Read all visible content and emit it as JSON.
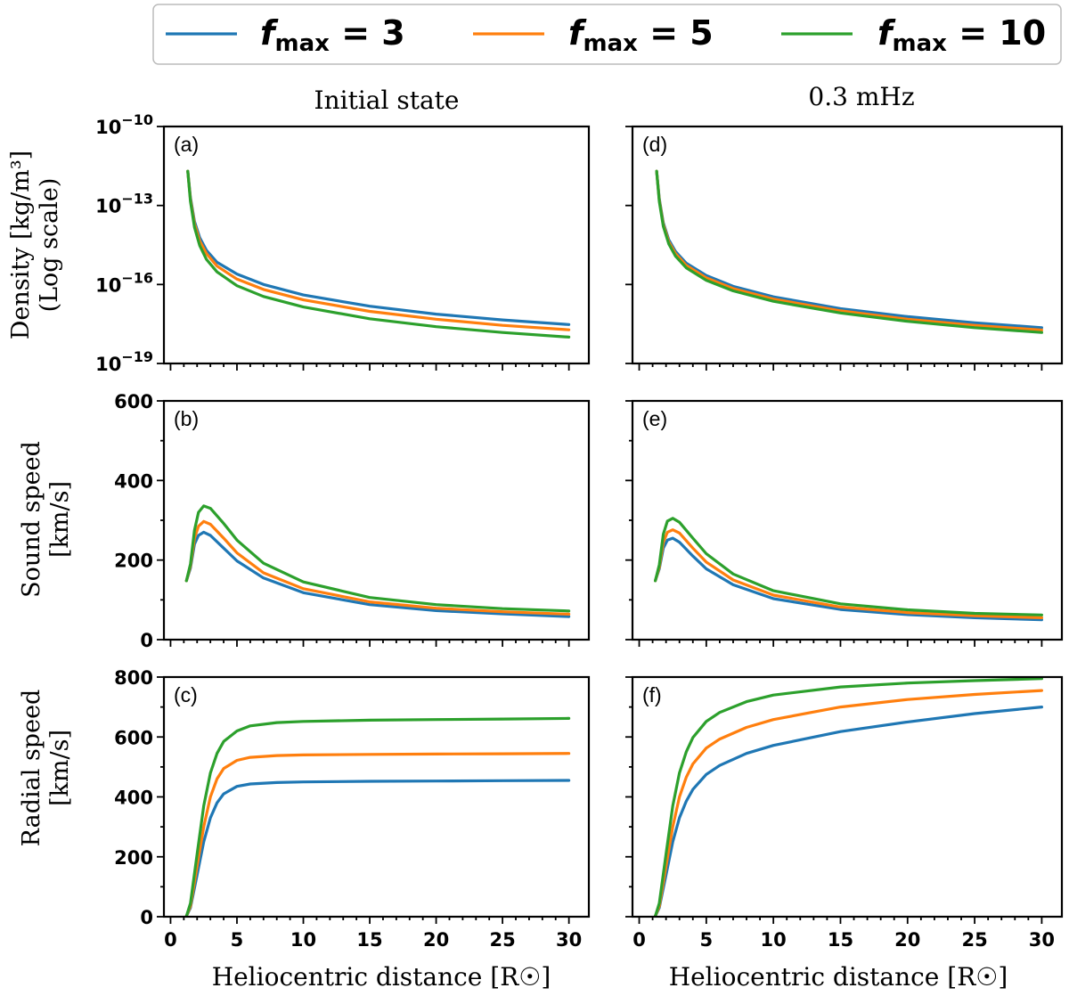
{
  "legend": {
    "entries": [
      {
        "label": "f",
        "sub": "max",
        "suffix": " = 3",
        "color": "#1f77b4"
      },
      {
        "label": "f",
        "sub": "max",
        "suffix": " = 5",
        "color": "#ff7f0e"
      },
      {
        "label": "f",
        "sub": "max",
        "suffix": " = 10",
        "color": "#2ca02c"
      }
    ]
  },
  "columns": [
    {
      "title": "Initial state"
    },
    {
      "title": "0.3 mHz"
    }
  ],
  "row_labels": [
    {
      "lines": [
        "Density [kg/m³]",
        "(Log scale)"
      ]
    },
    {
      "lines": [
        "Sound speed",
        "[km/s]"
      ]
    },
    {
      "lines": [
        "Radial speed",
        "[km/s]"
      ]
    }
  ],
  "xlabel": "Heliocentric distance [R☉]",
  "chart_data": [
    {
      "id": "a",
      "panel_label": "(a)",
      "type": "line",
      "yscale": "log",
      "xlim": [
        -0.5,
        31.5
      ],
      "ylim": [
        1e-19,
        1e-10
      ],
      "xticks": [
        0,
        5,
        10,
        15,
        20,
        25,
        30
      ],
      "yticks": [
        {
          "v": 1e-10,
          "b": "10",
          "e": "−10"
        },
        {
          "v": 1e-13,
          "b": "10",
          "e": "−13"
        },
        {
          "v": 1e-16,
          "b": "10",
          "e": "−16"
        },
        {
          "v": 1e-19,
          "b": "10",
          "e": "−19"
        }
      ],
      "series": [
        {
          "name": "fmax = 3",
          "color": "#1f77b4",
          "x": [
            1.3,
            1.5,
            1.8,
            2.2,
            2.7,
            3.5,
            5,
            7,
            10,
            15,
            20,
            25,
            30
          ],
          "y": [
            2e-12,
            2e-13,
            2.5e-14,
            6e-15,
            2e-15,
            7e-16,
            2.5e-16,
            1e-16,
            4e-17,
            1.5e-17,
            7.5e-18,
            4.5e-18,
            3e-18
          ]
        },
        {
          "name": "fmax = 5",
          "color": "#ff7f0e",
          "x": [
            1.3,
            1.5,
            1.8,
            2.2,
            2.7,
            3.5,
            5,
            7,
            10,
            15,
            20,
            25,
            30
          ],
          "y": [
            2e-12,
            1.7e-13,
            2e-14,
            4.5e-15,
            1.5e-15,
            5e-16,
            1.6e-16,
            6.5e-17,
            2.6e-17,
            9.5e-18,
            4.8e-18,
            2.8e-18,
            1.9e-18
          ]
        },
        {
          "name": "fmax = 10",
          "color": "#2ca02c",
          "x": [
            1.3,
            1.5,
            1.8,
            2.2,
            2.7,
            3.5,
            5,
            7,
            10,
            15,
            20,
            25,
            30
          ],
          "y": [
            2e-12,
            1.4e-13,
            1.5e-14,
            3e-15,
            9e-16,
            3e-16,
            9e-17,
            3.5e-17,
            1.4e-17,
            5e-18,
            2.5e-18,
            1.5e-18,
            1e-18
          ]
        }
      ]
    },
    {
      "id": "d",
      "panel_label": "(d)",
      "type": "line",
      "yscale": "log",
      "xlim": [
        -0.5,
        31.5
      ],
      "ylim": [
        1e-19,
        1e-10
      ],
      "xticks": [
        0,
        5,
        10,
        15,
        20,
        25,
        30
      ],
      "yticks": [],
      "series": [
        {
          "name": "fmax = 3",
          "color": "#1f77b4",
          "x": [
            1.3,
            1.5,
            1.8,
            2.2,
            2.7,
            3.5,
            5,
            7,
            10,
            15,
            20,
            25,
            30
          ],
          "y": [
            2e-12,
            1.8e-13,
            2.2e-14,
            5e-15,
            1.8e-15,
            6.5e-16,
            2.2e-16,
            8.5e-17,
            3.4e-17,
            1.2e-17,
            6e-18,
            3.5e-18,
            2.3e-18
          ]
        },
        {
          "name": "fmax = 5",
          "color": "#ff7f0e",
          "x": [
            1.3,
            1.5,
            1.8,
            2.2,
            2.7,
            3.5,
            5,
            7,
            10,
            15,
            20,
            25,
            30
          ],
          "y": [
            2e-12,
            1.6e-13,
            1.9e-14,
            4.2e-15,
            1.5e-15,
            5.3e-16,
            1.8e-16,
            7e-17,
            2.8e-17,
            1e-17,
            4.8e-18,
            2.8e-18,
            1.85e-18
          ]
        },
        {
          "name": "fmax = 10",
          "color": "#2ca02c",
          "x": [
            1.3,
            1.5,
            1.8,
            2.2,
            2.7,
            3.5,
            5,
            7,
            10,
            15,
            20,
            25,
            30
          ],
          "y": [
            2e-12,
            1.4e-13,
            1.6e-14,
            3.5e-15,
            1.2e-15,
            4.3e-16,
            1.45e-16,
            5.7e-17,
            2.3e-17,
            8.3e-18,
            4e-18,
            2.3e-18,
            1.5e-18
          ]
        }
      ]
    },
    {
      "id": "b",
      "panel_label": "(b)",
      "type": "line",
      "yscale": "linear",
      "xlim": [
        -0.5,
        31.5
      ],
      "ylim": [
        0,
        600
      ],
      "xticks": [
        0,
        5,
        10,
        15,
        20,
        25,
        30
      ],
      "yticks": [
        {
          "v": 0,
          "t": "0"
        },
        {
          "v": 200,
          "t": "200"
        },
        {
          "v": 400,
          "t": "400"
        },
        {
          "v": 600,
          "t": "600"
        }
      ],
      "series": [
        {
          "name": "fmax = 3",
          "color": "#1f77b4",
          "x": [
            1.2,
            1.5,
            1.8,
            2.1,
            2.5,
            3,
            4,
            5,
            7,
            10,
            15,
            20,
            25,
            30
          ],
          "y": [
            148,
            180,
            240,
            262,
            270,
            262,
            230,
            198,
            155,
            118,
            88,
            73,
            65,
            58
          ]
        },
        {
          "name": "fmax = 5",
          "color": "#ff7f0e",
          "x": [
            1.2,
            1.5,
            1.8,
            2.1,
            2.5,
            3,
            4,
            5,
            7,
            10,
            15,
            20,
            25,
            30
          ],
          "y": [
            148,
            185,
            255,
            285,
            297,
            290,
            255,
            218,
            168,
            128,
            95,
            79,
            70,
            64
          ]
        },
        {
          "name": "fmax = 10",
          "color": "#2ca02c",
          "x": [
            1.2,
            1.5,
            1.8,
            2.1,
            2.5,
            3,
            4,
            5,
            7,
            10,
            15,
            20,
            25,
            30
          ],
          "y": [
            148,
            190,
            275,
            320,
            336,
            330,
            292,
            250,
            192,
            145,
            106,
            88,
            78,
            72
          ]
        }
      ]
    },
    {
      "id": "e",
      "panel_label": "(e)",
      "type": "line",
      "yscale": "linear",
      "xlim": [
        -0.5,
        31.5
      ],
      "ylim": [
        0,
        600
      ],
      "xticks": [
        0,
        5,
        10,
        15,
        20,
        25,
        30
      ],
      "yticks": [],
      "series": [
        {
          "name": "fmax = 3",
          "color": "#1f77b4",
          "x": [
            1.2,
            1.5,
            1.8,
            2.1,
            2.5,
            3,
            4,
            5,
            7,
            10,
            15,
            20,
            25,
            30
          ],
          "y": [
            148,
            178,
            230,
            250,
            255,
            245,
            210,
            178,
            138,
            103,
            76,
            63,
            55,
            50
          ]
        },
        {
          "name": "fmax = 5",
          "color": "#ff7f0e",
          "x": [
            1.2,
            1.5,
            1.8,
            2.1,
            2.5,
            3,
            4,
            5,
            7,
            10,
            15,
            20,
            25,
            30
          ],
          "y": [
            148,
            182,
            245,
            270,
            276,
            268,
            230,
            195,
            150,
            112,
            82,
            68,
            60,
            55
          ]
        },
        {
          "name": "fmax = 10",
          "color": "#2ca02c",
          "x": [
            1.2,
            1.5,
            1.8,
            2.1,
            2.5,
            3,
            4,
            5,
            7,
            10,
            15,
            20,
            25,
            30
          ],
          "y": [
            148,
            188,
            265,
            298,
            305,
            295,
            255,
            216,
            165,
            123,
            90,
            75,
            66,
            62
          ]
        }
      ]
    },
    {
      "id": "c",
      "panel_label": "(c)",
      "type": "line",
      "yscale": "linear",
      "xlim": [
        -0.5,
        31.5
      ],
      "ylim": [
        0,
        800
      ],
      "xticks": [
        0,
        5,
        10,
        15,
        20,
        25,
        30
      ],
      "yticks": [
        {
          "v": 0,
          "t": "0"
        },
        {
          "v": 200,
          "t": "200"
        },
        {
          "v": 400,
          "t": "400"
        },
        {
          "v": 600,
          "t": "600"
        },
        {
          "v": 800,
          "t": "800"
        }
      ],
      "series": [
        {
          "name": "fmax = 3",
          "color": "#1f77b4",
          "x": [
            1.2,
            1.5,
            2,
            2.5,
            3,
            3.5,
            4,
            5,
            6,
            8,
            10,
            15,
            20,
            25,
            30
          ],
          "y": [
            2,
            30,
            140,
            250,
            330,
            380,
            410,
            435,
            443,
            448,
            450,
            452,
            453,
            454,
            455
          ]
        },
        {
          "name": "fmax = 5",
          "color": "#ff7f0e",
          "x": [
            1.2,
            1.5,
            2,
            2.5,
            3,
            3.5,
            4,
            5,
            6,
            8,
            10,
            15,
            20,
            25,
            30
          ],
          "y": [
            2,
            35,
            170,
            300,
            400,
            460,
            495,
            522,
            532,
            538,
            540,
            542,
            543,
            544,
            545
          ]
        },
        {
          "name": "fmax = 10",
          "color": "#2ca02c",
          "x": [
            1.2,
            1.5,
            2,
            2.5,
            3,
            3.5,
            4,
            5,
            6,
            8,
            10,
            15,
            20,
            25,
            30
          ],
          "y": [
            2,
            45,
            210,
            370,
            480,
            545,
            585,
            620,
            637,
            648,
            652,
            656,
            658,
            660,
            662
          ]
        }
      ]
    },
    {
      "id": "f",
      "panel_label": "(f)",
      "type": "line",
      "yscale": "linear",
      "xlim": [
        -0.5,
        31.5
      ],
      "ylim": [
        0,
        800
      ],
      "xticks": [
        0,
        5,
        10,
        15,
        20,
        25,
        30
      ],
      "yticks": [],
      "series": [
        {
          "name": "fmax = 3",
          "color": "#1f77b4",
          "x": [
            1.2,
            1.5,
            2,
            2.5,
            3,
            3.5,
            4,
            5,
            6,
            8,
            10,
            15,
            20,
            25,
            30
          ],
          "y": [
            2,
            30,
            140,
            250,
            330,
            385,
            425,
            475,
            505,
            545,
            572,
            618,
            650,
            678,
            700
          ]
        },
        {
          "name": "fmax = 5",
          "color": "#ff7f0e",
          "x": [
            1.2,
            1.5,
            2,
            2.5,
            3,
            3.5,
            4,
            5,
            6,
            8,
            10,
            15,
            20,
            25,
            30
          ],
          "y": [
            2,
            35,
            170,
            300,
            400,
            465,
            510,
            563,
            593,
            632,
            658,
            700,
            725,
            742,
            755
          ]
        },
        {
          "name": "fmax = 10",
          "color": "#2ca02c",
          "x": [
            1.2,
            1.5,
            2,
            2.5,
            3,
            3.5,
            4,
            5,
            6,
            8,
            10,
            15,
            20,
            25,
            30
          ],
          "y": [
            2,
            45,
            210,
            370,
            480,
            550,
            598,
            652,
            682,
            718,
            740,
            767,
            780,
            788,
            795
          ]
        }
      ]
    }
  ]
}
